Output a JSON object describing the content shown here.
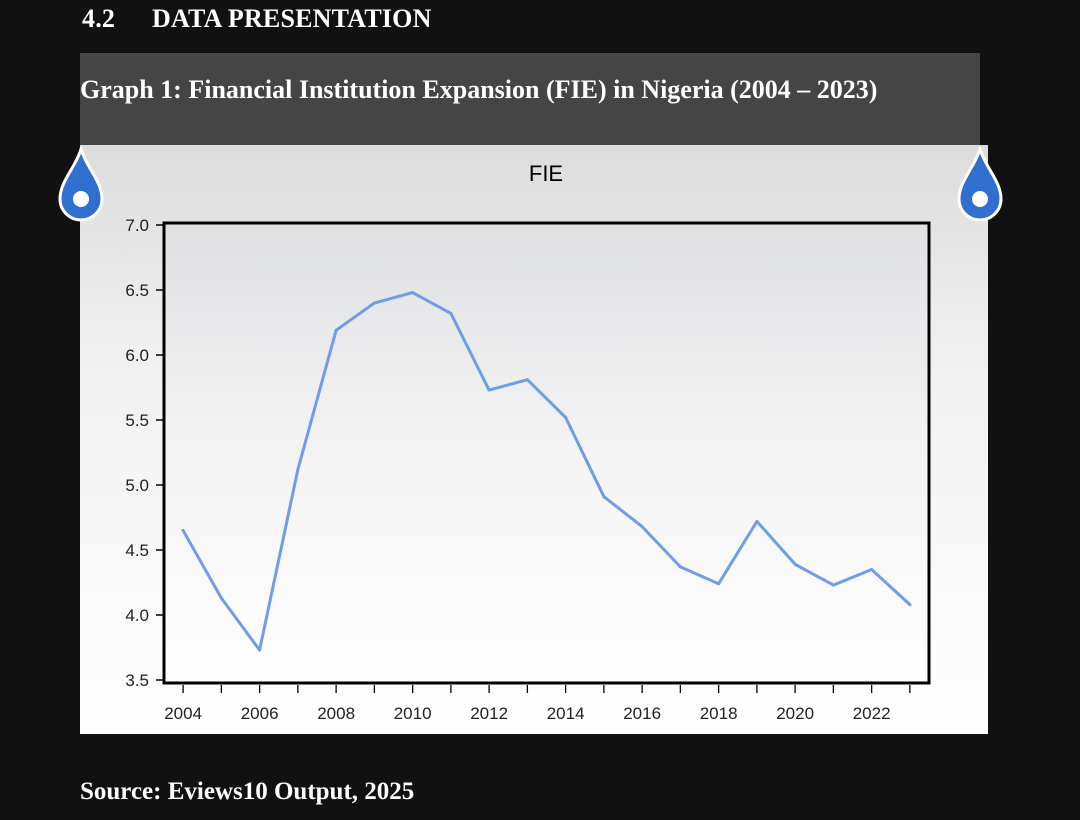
{
  "heading": {
    "number": "4.2",
    "title": "DATA PRESENTATION"
  },
  "caption": "Graph 1: Financial Institution Expansion (FIE) in Nigeria (2004 – 2023)",
  "source": "Source: Eviews10 Output, 2025",
  "colors": {
    "page_bg": "#111111",
    "caption_bg": "#454545",
    "line": "#6f9de8",
    "drop": "#2f6fd0"
  },
  "chart_data": {
    "type": "line",
    "title": "FIE",
    "xlabel": "",
    "ylabel": "",
    "x": [
      2004,
      2005,
      2006,
      2007,
      2008,
      2009,
      2010,
      2011,
      2012,
      2013,
      2014,
      2015,
      2016,
      2017,
      2018,
      2019,
      2020,
      2021,
      2022,
      2023
    ],
    "series": [
      {
        "name": "FIE",
        "values": [
          4.65,
          4.13,
          3.73,
          5.12,
          6.19,
          6.4,
          6.48,
          6.32,
          5.73,
          5.81,
          5.52,
          4.91,
          4.68,
          4.37,
          4.24,
          4.72,
          4.39,
          4.23,
          4.35,
          4.08
        ]
      }
    ],
    "xlim": [
      2003.5,
      2023.5
    ],
    "ylim": [
      3.5,
      7.0
    ],
    "x_tick_labels": [
      "2004",
      "2006",
      "2008",
      "2010",
      "2012",
      "2014",
      "2016",
      "2018",
      "2020",
      "2022"
    ],
    "y_tick_labels": [
      "3.5",
      "4.0",
      "4.5",
      "5.0",
      "5.5",
      "6.0",
      "6.5",
      "7.0"
    ],
    "grid": false,
    "legend": "none"
  }
}
